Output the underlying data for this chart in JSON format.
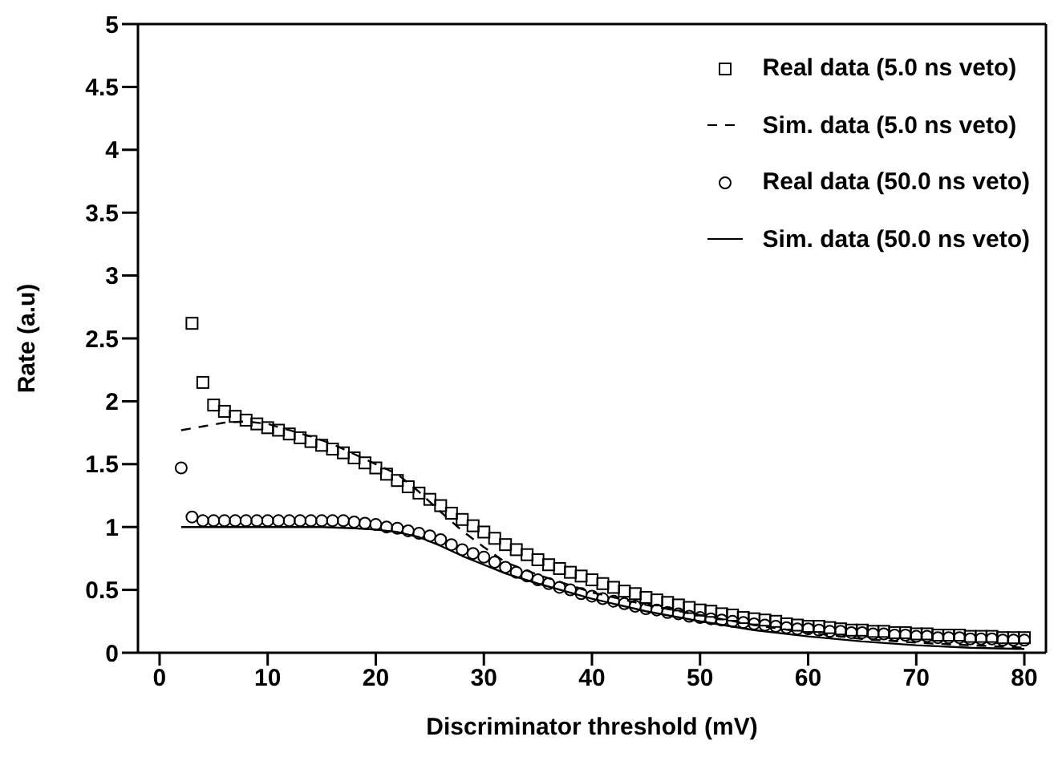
{
  "chart_data": {
    "type": "scatter",
    "xlabel": "Discriminator threshold (mV)",
    "ylabel": "Rate (a.u)",
    "xlim": [
      -2,
      82
    ],
    "xticks": [
      0,
      10,
      20,
      30,
      40,
      50,
      60,
      70,
      80
    ],
    "ylim": [
      0,
      5
    ],
    "yticks": [
      0,
      0.5,
      1,
      1.5,
      2,
      2.5,
      3,
      3.5,
      4,
      4.5,
      5
    ],
    "legend": "top right",
    "series": [
      {
        "name": "Real data (5.0 ns veto)",
        "marker": "square",
        "color": "#000000",
        "x": [
          3,
          4,
          5,
          6,
          7,
          8,
          9,
          10,
          11,
          12,
          13,
          14,
          15,
          16,
          17,
          18,
          19,
          20,
          21,
          22,
          23,
          24,
          25,
          26,
          27,
          28,
          29,
          30,
          31,
          32,
          33,
          34,
          35,
          36,
          37,
          38,
          39,
          40,
          41,
          42,
          43,
          44,
          45,
          46,
          47,
          48,
          49,
          50,
          51,
          52,
          53,
          54,
          55,
          56,
          57,
          58,
          59,
          60,
          61,
          62,
          63,
          64,
          65,
          66,
          67,
          68,
          69,
          70,
          71,
          72,
          73,
          74,
          75,
          76,
          77,
          78,
          79,
          80
        ],
        "values": [
          2.62,
          2.15,
          1.97,
          1.92,
          1.88,
          1.85,
          1.82,
          1.79,
          1.77,
          1.74,
          1.71,
          1.68,
          1.65,
          1.62,
          1.59,
          1.55,
          1.51,
          1.47,
          1.42,
          1.37,
          1.32,
          1.27,
          1.22,
          1.17,
          1.11,
          1.06,
          1.01,
          0.96,
          0.91,
          0.86,
          0.82,
          0.78,
          0.74,
          0.7,
          0.67,
          0.64,
          0.61,
          0.58,
          0.55,
          0.52,
          0.49,
          0.47,
          0.44,
          0.42,
          0.4,
          0.38,
          0.36,
          0.34,
          0.33,
          0.31,
          0.3,
          0.28,
          0.27,
          0.26,
          0.25,
          0.23,
          0.22,
          0.21,
          0.21,
          0.2,
          0.19,
          0.18,
          0.18,
          0.17,
          0.17,
          0.16,
          0.16,
          0.15,
          0.15,
          0.14,
          0.14,
          0.14,
          0.13,
          0.13,
          0.13,
          0.12,
          0.12,
          0.12
        ]
      },
      {
        "name": "Sim. data (5.0 ns veto)",
        "type": "line",
        "marker": "none",
        "line_style": "dashed",
        "color": "#000000",
        "x": [
          2,
          4,
          6,
          8,
          10,
          12,
          14,
          16,
          18,
          20,
          22,
          24,
          26,
          28,
          30,
          32,
          35,
          40,
          45,
          50,
          55,
          60,
          65,
          70,
          75,
          80
        ],
        "values": [
          1.77,
          1.8,
          1.83,
          1.84,
          1.82,
          1.77,
          1.72,
          1.66,
          1.58,
          1.5,
          1.42,
          1.28,
          1.12,
          0.97,
          0.84,
          0.72,
          0.62,
          0.48,
          0.38,
          0.3,
          0.22,
          0.16,
          0.11,
          0.08,
          0.06,
          0.04
        ]
      },
      {
        "name": "Real data (50.0 ns veto)",
        "marker": "circle",
        "color": "#000000",
        "x": [
          2,
          3,
          4,
          5,
          6,
          7,
          8,
          9,
          10,
          11,
          12,
          13,
          14,
          15,
          16,
          17,
          18,
          19,
          20,
          21,
          22,
          23,
          24,
          25,
          26,
          27,
          28,
          29,
          30,
          31,
          32,
          33,
          34,
          35,
          36,
          37,
          38,
          39,
          40,
          41,
          42,
          43,
          44,
          45,
          46,
          47,
          48,
          49,
          50,
          51,
          52,
          53,
          54,
          55,
          56,
          57,
          58,
          59,
          60,
          61,
          62,
          63,
          64,
          65,
          66,
          67,
          68,
          69,
          70,
          71,
          72,
          73,
          74,
          75,
          76,
          77,
          78,
          79,
          80
        ],
        "values": [
          1.47,
          1.08,
          1.05,
          1.05,
          1.05,
          1.05,
          1.05,
          1.05,
          1.05,
          1.05,
          1.05,
          1.05,
          1.05,
          1.05,
          1.05,
          1.05,
          1.04,
          1.03,
          1.02,
          1,
          0.99,
          0.97,
          0.95,
          0.93,
          0.9,
          0.86,
          0.82,
          0.79,
          0.76,
          0.72,
          0.68,
          0.64,
          0.61,
          0.58,
          0.55,
          0.52,
          0.5,
          0.47,
          0.45,
          0.43,
          0.41,
          0.39,
          0.37,
          0.35,
          0.34,
          0.32,
          0.31,
          0.29,
          0.28,
          0.27,
          0.26,
          0.25,
          0.24,
          0.23,
          0.22,
          0.21,
          0.2,
          0.19,
          0.19,
          0.18,
          0.17,
          0.17,
          0.16,
          0.16,
          0.15,
          0.15,
          0.14,
          0.14,
          0.13,
          0.13,
          0.12,
          0.12,
          0.12,
          0.11,
          0.11,
          0.11,
          0.1,
          0.1,
          0.1
        ]
      },
      {
        "name": "Sim. data (50.0 ns veto)",
        "type": "line",
        "marker": "none",
        "line_style": "solid",
        "color": "#000000",
        "x": [
          2,
          5,
          10,
          15,
          18,
          20,
          22,
          24,
          26,
          28,
          30,
          32,
          35,
          40,
          45,
          50,
          55,
          60,
          65,
          70,
          75,
          80
        ],
        "values": [
          1,
          1,
          1,
          1,
          0.99,
          0.98,
          0.96,
          0.92,
          0.85,
          0.77,
          0.7,
          0.63,
          0.55,
          0.43,
          0.33,
          0.25,
          0.18,
          0.13,
          0.09,
          0.06,
          0.04,
          0.03
        ]
      }
    ]
  }
}
